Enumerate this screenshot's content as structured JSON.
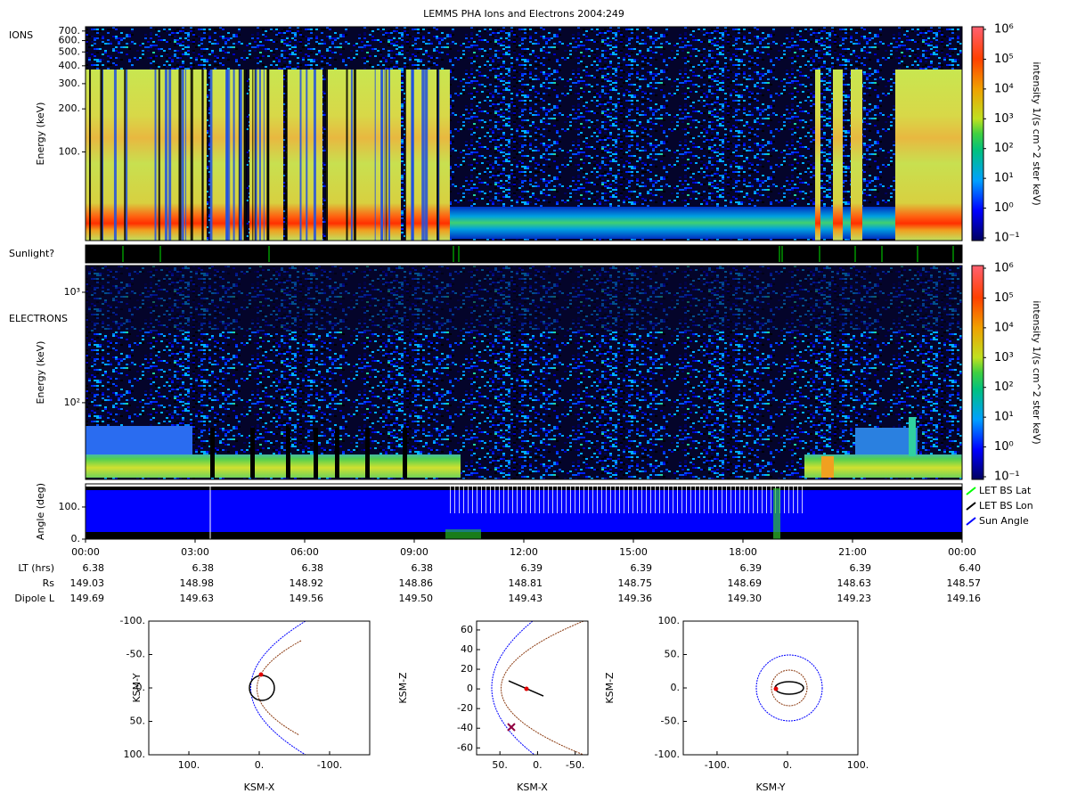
{
  "chart_data": [
    {
      "type": "heatmap",
      "title": "LEMMS PHA Ions and Electrons  2004:249",
      "label": "IONS",
      "y_label": "Energy (keV)",
      "log_y": true,
      "ylim": [
        24,
        750
      ],
      "yticks": [
        {
          "value": 100,
          "label": "100."
        },
        {
          "value": 200,
          "label": "200."
        },
        {
          "value": 300,
          "label": "300."
        },
        {
          "value": 400,
          "label": "400."
        },
        {
          "value": 500,
          "label": "500."
        },
        {
          "value": 600,
          "label": "600."
        },
        {
          "value": 700,
          "label": "700."
        }
      ],
      "colorbar": {
        "label": "intensity 1/(s cm^2 ster keV)",
        "lim": [
          0.1,
          1000000
        ],
        "ticks": [
          {
            "value": 0.1,
            "label": "10⁻¹"
          },
          {
            "value": 1,
            "label": "10⁰"
          },
          {
            "value": 10,
            "label": "10¹"
          },
          {
            "value": 100,
            "label": "10²"
          },
          {
            "value": 1000,
            "label": "10³"
          },
          {
            "value": 10000,
            "label": "10⁴"
          },
          {
            "value": 100000,
            "label": "10⁵"
          },
          {
            "value": 1000000,
            "label": "10⁶"
          }
        ]
      }
    },
    {
      "type": "strip",
      "label": "Sunlight?"
    },
    {
      "type": "heatmap",
      "label": "ELECTRONS",
      "y_label": "Energy (keV)",
      "log_y": true,
      "ylim": [
        20.2,
        1745
      ],
      "yticks": [
        {
          "value": 100,
          "label": "10²"
        },
        {
          "value": 1000,
          "label": "10³"
        }
      ],
      "colorbar": {
        "label": "intensity 1/(s cm^2 ster keV)",
        "lim": [
          0.1,
          1000000
        ],
        "ticks": [
          {
            "value": 0.1,
            "label": "10⁻¹"
          },
          {
            "value": 1,
            "label": "10⁰"
          },
          {
            "value": 10,
            "label": "10¹"
          },
          {
            "value": 100,
            "label": "10²"
          },
          {
            "value": 1000,
            "label": "10³"
          },
          {
            "value": 10000,
            "label": "10⁴"
          },
          {
            "value": 100000,
            "label": "10⁵"
          },
          {
            "value": 1000000,
            "label": "10⁶"
          }
        ]
      }
    },
    {
      "type": "line",
      "y_label": "Angle (deg)",
      "ylim": [
        0,
        172
      ],
      "yticks": [
        {
          "value": 0,
          "label": "0."
        },
        {
          "value": 100,
          "label": "100."
        }
      ],
      "series": [
        {
          "name": "LET BS Lat",
          "color": "#00ff00"
        },
        {
          "name": "LET BS Lon",
          "color": "#000000"
        },
        {
          "name": "Sun Angle",
          "color": "#0000ff"
        }
      ],
      "x_ticks": [
        "00:00",
        "03:00",
        "06:00",
        "09:00",
        "12:00",
        "15:00",
        "18:00",
        "21:00",
        "00:00"
      ],
      "info_rows": [
        {
          "label": "LT (hrs)",
          "values": [
            "6.38",
            "6.38",
            "6.38",
            "6.38",
            "6.39",
            "6.39",
            "6.39",
            "6.39",
            "6.40"
          ]
        },
        {
          "label": "Rs",
          "values": [
            "149.03",
            "148.98",
            "148.92",
            "148.86",
            "148.81",
            "148.75",
            "148.69",
            "148.63",
            "148.57"
          ]
        },
        {
          "label": "Dipole L",
          "values": [
            "149.69",
            "149.63",
            "149.56",
            "149.50",
            "149.43",
            "149.36",
            "149.30",
            "149.23",
            "149.16"
          ]
        }
      ]
    },
    {
      "type": "scatter",
      "x_label": "KSM-X",
      "y_label": "KSM-Y",
      "xlim": [
        157,
        -157
      ],
      "ylim": [
        100,
        -100
      ],
      "xticks": [
        {
          "value": 100,
          "label": "100."
        },
        {
          "value": 0,
          "label": "0."
        },
        {
          "value": -100,
          "label": "-100."
        }
      ],
      "yticks": [
        {
          "value": -100,
          "label": "-100."
        },
        {
          "value": -50,
          "label": "-50."
        },
        {
          "value": 0,
          "label": "0."
        },
        {
          "value": 50,
          "label": "50."
        },
        {
          "value": 100,
          "label": "100."
        }
      ]
    },
    {
      "type": "scatter",
      "x_label": "KSM-X",
      "y_label": "KSM-Z",
      "xlim": [
        81,
        -67
      ],
      "ylim": [
        -67,
        69
      ],
      "xticks": [
        {
          "value": 50,
          "label": "50."
        },
        {
          "value": 0,
          "label": "0."
        },
        {
          "value": -50,
          "label": "-50."
        }
      ],
      "yticks": [
        60,
        40,
        20,
        0,
        -20,
        -40,
        -60
      ]
    },
    {
      "type": "scatter",
      "x_label": "KSM-Y",
      "y_label": "KSM-Z",
      "xlim": [
        -148,
        100
      ],
      "ylim": [
        -100,
        100
      ],
      "xticks": [
        {
          "value": -100,
          "label": "-100."
        },
        {
          "value": 0,
          "label": "0."
        },
        {
          "value": 100,
          "label": "100."
        }
      ],
      "yticks": [
        {
          "value": 100,
          "label": "100."
        },
        {
          "value": 50,
          "label": "50."
        },
        {
          "value": 0,
          "label": "0."
        },
        {
          "value": -50,
          "label": "-50."
        },
        {
          "value": -100,
          "label": "-100."
        }
      ]
    }
  ]
}
